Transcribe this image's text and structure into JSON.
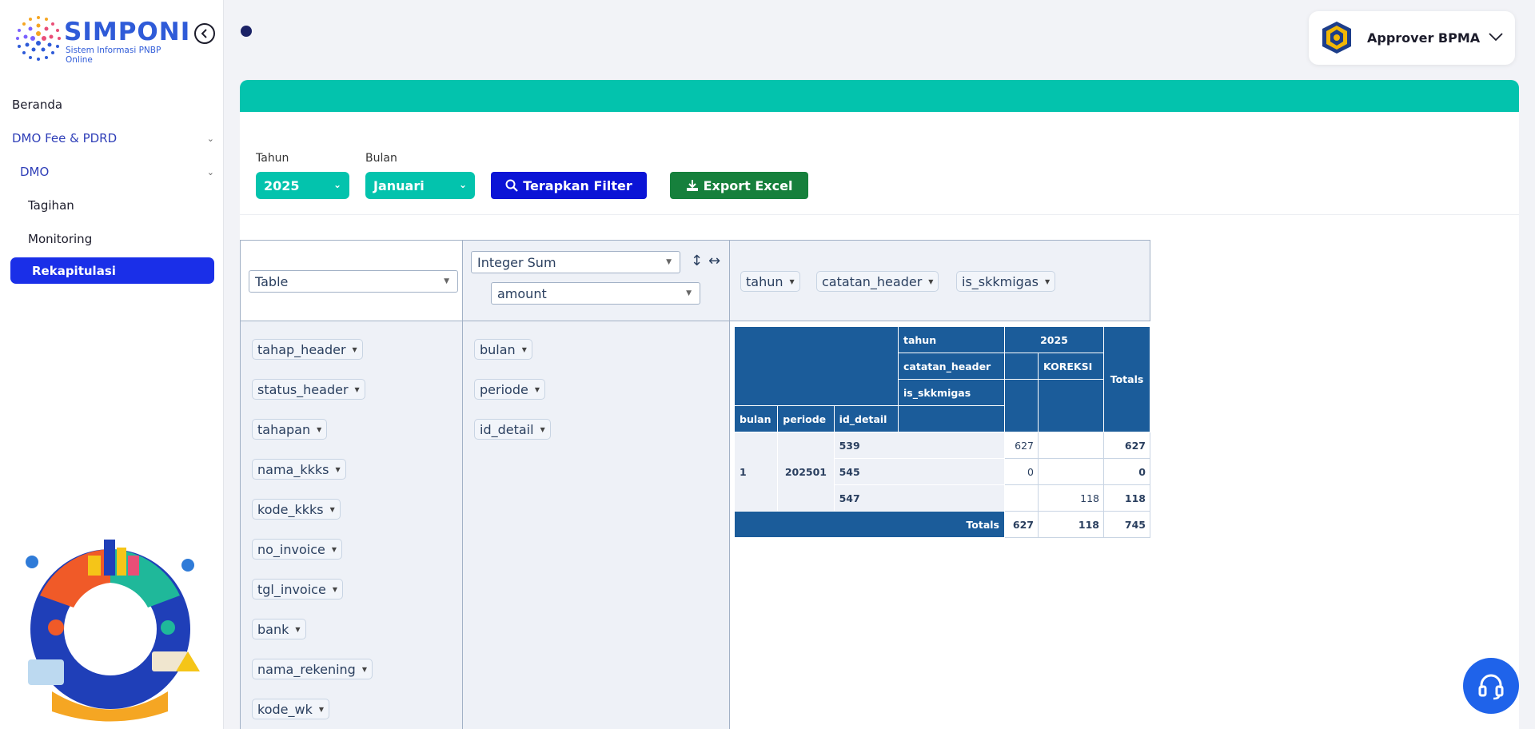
{
  "brand": {
    "name": "SIMPONI",
    "tagline": "Sistem Informasi PNBP Online"
  },
  "sidebar": {
    "items": [
      {
        "label": "Beranda"
      },
      {
        "label": "DMO Fee & PDRD"
      },
      {
        "label": "DMO"
      },
      {
        "label": "Tagihan"
      },
      {
        "label": "Monitoring"
      },
      {
        "label": "Rekapitulasi"
      }
    ]
  },
  "user": {
    "name": "Approver BPMA"
  },
  "filters": {
    "year_label": "Tahun",
    "year_value": "2025",
    "month_label": "Bulan",
    "month_value": "Januari",
    "apply_label": "Terapkan Filter",
    "export_label": "Export Excel"
  },
  "pivot": {
    "renderer": "Table",
    "aggregator": "Integer Sum",
    "value_field": "amount",
    "col_attrs": [
      "tahun",
      "catatan_header",
      "is_skkmigas"
    ],
    "unused_attrs": [
      "tahap_header",
      "status_header",
      "tahapan",
      "nama_kkks",
      "kode_kkks",
      "no_invoice",
      "tgl_invoice",
      "bank",
      "nama_rekening",
      "kode_wk"
    ],
    "row_attrs": [
      "bulan",
      "periode",
      "id_detail"
    ],
    "table": {
      "col_header_labels": [
        "tahun",
        "catatan_header",
        "is_skkmigas"
      ],
      "year": "2025",
      "koreksi": "KOREKSI",
      "totals_label": "Totals",
      "row_header_labels": [
        "bulan",
        "periode",
        "id_detail"
      ],
      "bulan": "1",
      "periode": "202501",
      "rows": [
        {
          "id": "539",
          "blank": "627",
          "koreksi": "",
          "total": "627"
        },
        {
          "id": "545",
          "blank": "0",
          "koreksi": "",
          "total": "0"
        },
        {
          "id": "547",
          "blank": "",
          "koreksi": "118",
          "total": "118"
        }
      ],
      "col_totals": {
        "blank": "627",
        "koreksi": "118",
        "grand": "745"
      }
    }
  },
  "colors": {
    "teal": "#03c3ad",
    "primary_blue": "#1a2fe8",
    "export_green": "#16803c",
    "table_header": "#1b5c9a"
  }
}
